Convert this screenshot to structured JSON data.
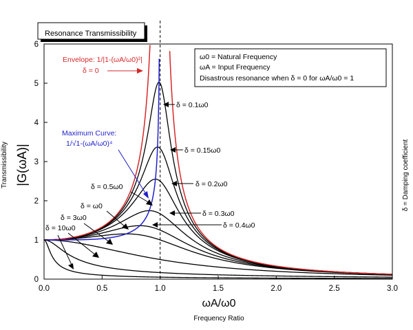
{
  "chart_data": {
    "type": "line",
    "title": "Resonance Transmissibility",
    "xlabel_main": "ωA/ω0",
    "xlabel_sub": "Frequency Ratio",
    "ylabel_main": "|G(ωA)|",
    "ylabel_sub": "Transmissibility",
    "right_label": "δ = Damping coefficient",
    "xlim": [
      0,
      3
    ],
    "ylim": [
      0,
      6
    ],
    "x_ticks": [
      "0.0",
      "0.5",
      "1.0",
      "1.5",
      "2.0",
      "2.5",
      "3.0"
    ],
    "y_ticks": [
      "0",
      "1",
      "2",
      "3",
      "4",
      "5",
      "6"
    ],
    "resonance_line_x": 1.0,
    "legend_box": [
      "ω0 = Natural Frequency",
      "ωA = Input Frequency",
      "Disastrous resonance when δ = 0 for ωA/ω0 = 1"
    ],
    "envelope": {
      "label_line1": "Envelope: 1/|1-(ωA/ω0)²|",
      "label_line2": "δ = 0",
      "color": "#d62728"
    },
    "maximum_curve": {
      "label_line1": "Maximum Curve:",
      "label_line2": "1/√1-(ωA/ω0)⁴",
      "color": "#1f1fcc"
    },
    "damped_curves": {
      "color": "#000000",
      "series": [
        {
          "label": "δ = 0.1ω0",
          "zeta": 0.1
        },
        {
          "label": "δ = 0.15ω0",
          "zeta": 0.15
        },
        {
          "label": "δ = 0.2ω0",
          "zeta": 0.2
        },
        {
          "label": "δ = 0.3ω0",
          "zeta": 0.3
        },
        {
          "label": "δ = 0.4ω0",
          "zeta": 0.4
        },
        {
          "label": "δ = 0.5ω0",
          "zeta": 0.5
        },
        {
          "label": "δ = ω0",
          "zeta": 1.0
        },
        {
          "label": "δ = 3ω0",
          "zeta": 3.0
        },
        {
          "label": "δ = 10ω0",
          "zeta": 10.0
        }
      ]
    }
  }
}
